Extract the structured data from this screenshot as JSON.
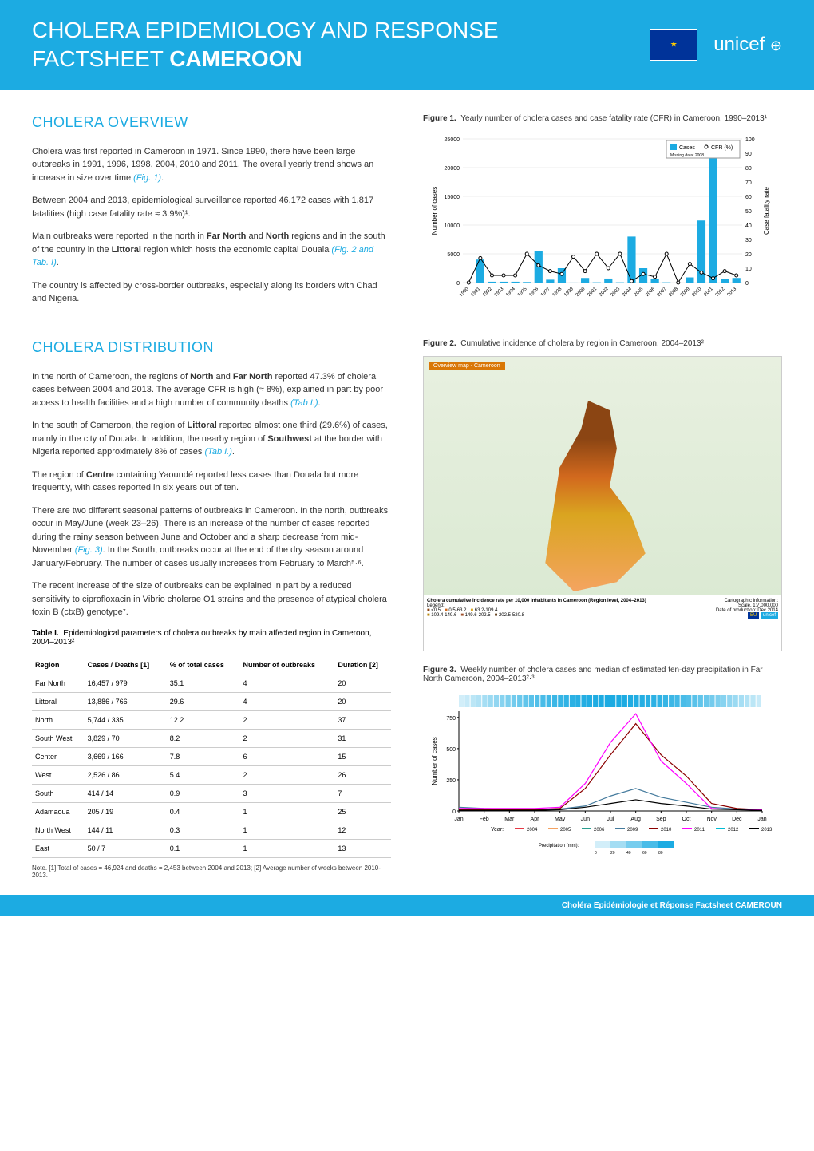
{
  "header": {
    "title_line1": "CHOLERA EPIDEMIOLOGY AND RESPONSE",
    "title_line2": "FACTSHEET",
    "title_bold": "CAMEROON",
    "unicef_label": "unicef"
  },
  "overview": {
    "title": "CHOLERA OVERVIEW",
    "p1a": "Cholera was first reported in Cameroon in 1971. Since 1990, there have been large outbreaks in 1991, 1996, 1998, 2004, 2010 and 2011. The overall yearly trend shows an increase in size over time ",
    "p1ref": "(Fig. 1)",
    "p1b": ".",
    "p2": "Between 2004 and 2013, epidemiological surveillance reported 46,172 cases with 1,817 fatalities (high case fatality rate ≈ 3.9%)¹.",
    "p3a": "Main outbreaks were reported in the north in ",
    "p3b1": "Far North",
    "p3c": " and ",
    "p3b2": "North",
    "p3d": " regions and in the south of the country in the ",
    "p3b3": "Littoral",
    "p3e": " region which hosts the economic capital Douala ",
    "p3ref": "(Fig. 2 and Tab. I)",
    "p3f": ".",
    "p4": "The country is affected by cross-border outbreaks, especially along its borders with Chad and Nigeria."
  },
  "fig1": {
    "caption_bold": "Figure 1.",
    "caption": "Yearly number of cholera cases and case fatality rate (CFR) in Cameroon, 1990–2013¹",
    "legend_cases": "Cases",
    "legend_cfr": "CFR (%)",
    "missing": "Missing data: 2008.",
    "yaxis_left": "Number of cases",
    "yaxis_right": "Case fatality rate",
    "left_ticks": [
      0,
      5000,
      10000,
      15000,
      20000,
      25000
    ],
    "right_ticks": [
      0,
      10,
      20,
      30,
      40,
      50,
      60,
      70,
      80,
      90,
      100
    ],
    "years": [
      "1990",
      "1991",
      "1992",
      "1993",
      "1994",
      "1995",
      "1996",
      "1997",
      "1998",
      "1999",
      "2000",
      "2001",
      "2002",
      "2003",
      "2004",
      "2005",
      "2006",
      "2007",
      "2008",
      "2009",
      "2010",
      "2011",
      "2012",
      "2013"
    ],
    "cases": [
      0,
      4000,
      150,
      150,
      150,
      100,
      5500,
      500,
      2500,
      10,
      800,
      50,
      700,
      50,
      8000,
      2500,
      700,
      50,
      0,
      900,
      10800,
      23000,
      600,
      800
    ],
    "cfr": [
      0,
      17,
      5,
      5,
      5,
      20,
      12,
      8,
      6,
      18,
      8,
      20,
      10,
      20,
      1,
      6,
      4,
      20,
      0,
      13,
      7,
      3,
      8,
      5
    ],
    "bar_color": "#1cabe2",
    "line_color": "#000"
  },
  "distribution": {
    "title": "CHOLERA DISTRIBUTION",
    "p1a": "In the north of Cameroon, the regions of ",
    "p1b1": "North",
    "p1b": " and ",
    "p1b2": "Far North",
    "p1c": " reported 47.3% of cholera cases between 2004 and 2013. The average CFR is high (≈ 8%), explained in part by poor access to health facilities and a high number of community deaths ",
    "p1ref": "(Tab I.)",
    "p1d": ".",
    "p2a": "In the south of Cameroon, the region of ",
    "p2b1": "Littoral",
    "p2b": " reported almost one third (29.6%) of cases, mainly in the city of Douala. In addition, the nearby region of ",
    "p2b2": "Southwest",
    "p2c": " at the border with Nigeria reported approximately 8% of cases ",
    "p2ref": "(Tab I.)",
    "p2d": ".",
    "p3a": "The region of ",
    "p3b1": "Centre",
    "p3b": " containing Yaoundé reported less cases than Douala but more frequently, with cases reported in six years out of ten.",
    "p4a": "There are two different seasonal patterns of outbreaks in Cameroon. In the north, outbreaks occur in May/June (week 23–26). There is an increase of the number of cases reported during the rainy season between June and October and a sharp decrease from mid-November ",
    "p4ref": "(Fig. 3)",
    "p4b": ". In the South, outbreaks occur at the end of the dry season around January/February. The number of cases usually increases from February to March⁵·⁶.",
    "p5": "The recent increase of the size of outbreaks can be explained in part by a reduced sensitivity to ciprofloxacin in Vibrio cholerae O1 strains and the presence of atypical cholera toxin B (ctxB) genotype⁷."
  },
  "fig2": {
    "caption_bold": "Figure 2.",
    "caption": "Cumulative incidence of cholera by region in Cameroon, 2004–2013²",
    "legend_title": "Cholera cumulative incidence rate per 10,000 inhabitants in Cameroon (Region level, 2004–2013)",
    "overview_label": "Overview map - Cameroon"
  },
  "table1": {
    "caption_bold": "Table I.",
    "caption": "Epidemiological parameters of cholera outbreaks by main affected region in Cameroon, 2004–2013²",
    "headers": [
      "Region",
      "Cases / Deaths [1]",
      "% of total cases",
      "Number of outbreaks",
      "Duration [2]"
    ],
    "rows": [
      [
        "Far North",
        "16,457 / 979",
        "35.1",
        "4",
        "20"
      ],
      [
        "Littoral",
        "13,886 / 766",
        "29.6",
        "4",
        "20"
      ],
      [
        "North",
        "5,744 / 335",
        "12.2",
        "2",
        "37"
      ],
      [
        "South West",
        "3,829 / 70",
        "8.2",
        "2",
        "31"
      ],
      [
        "Center",
        "3,669 / 166",
        "7.8",
        "6",
        "15"
      ],
      [
        "West",
        "2,526 / 86",
        "5.4",
        "2",
        "26"
      ],
      [
        "South",
        "414 / 14",
        "0.9",
        "3",
        "7"
      ],
      [
        "Adamaoua",
        "205 / 19",
        "0.4",
        "1",
        "25"
      ],
      [
        "North West",
        "144 / 11",
        "0.3",
        "1",
        "12"
      ],
      [
        "East",
        "50 / 7",
        "0.1",
        "1",
        "13"
      ]
    ],
    "note": "Note. [1] Total of cases = 46,924  and deaths = 2,453 between 2004 and 2013; [2] Average number of weeks between 2010-2013."
  },
  "fig3": {
    "caption_bold": "Figure 3.",
    "caption": "Weekly number of cholera cases and median of estimated ten-day precipitation in Far North Cameroon, 2004–2013²·³",
    "yaxis": "Number of cases",
    "yticks": [
      0,
      250,
      500,
      750
    ],
    "months": [
      "Jan",
      "Feb",
      "Mar",
      "Apr",
      "May",
      "Jun",
      "Jul",
      "Aug",
      "Sep",
      "Oct",
      "Nov",
      "Dec",
      "Jan"
    ],
    "year_label": "Year:",
    "years": [
      "2004",
      "2005",
      "2006",
      "2009",
      "2010",
      "2011",
      "2012",
      "2013"
    ],
    "year_colors": [
      "#e63946",
      "#f4a261",
      "#2a9d8f",
      "#457b9d",
      "#8b0000",
      "#ff00ff",
      "#00bcd4",
      "#000"
    ],
    "precip_label": "Precipitation (mm):",
    "precip_ticks": [
      0,
      20,
      40,
      60,
      80
    ],
    "precip_bar_color": "#1cabe2",
    "lines": {
      "2010": [
        10,
        10,
        10,
        10,
        20,
        180,
        450,
        700,
        450,
        280,
        60,
        20,
        10
      ],
      "2011": [
        20,
        20,
        20,
        20,
        30,
        220,
        550,
        780,
        400,
        220,
        20,
        10,
        10
      ],
      "2009": [
        30,
        20,
        15,
        10,
        15,
        40,
        120,
        180,
        110,
        70,
        30,
        15,
        10
      ],
      "2013": [
        5,
        5,
        5,
        5,
        10,
        30,
        60,
        90,
        60,
        40,
        15,
        10,
        5
      ]
    }
  },
  "footer": {
    "text": "Choléra Epidémiologie et Réponse Factsheet CAMEROUN"
  }
}
